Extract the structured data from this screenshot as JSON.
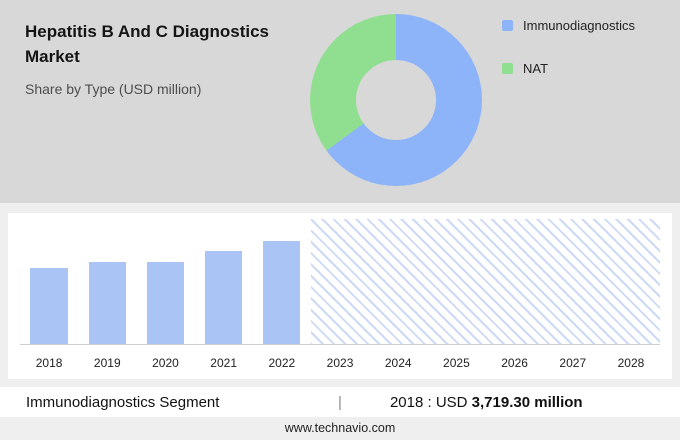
{
  "header": {
    "title": "Hepatitis B And C Diagnostics Market",
    "subtitle": "Share by Type (USD million)"
  },
  "chart_data": [
    {
      "type": "pie",
      "donut": true,
      "title": "Share by Type (USD million)",
      "labels": [
        "Immunodiagnostics",
        "NAT"
      ],
      "values": [
        65,
        35
      ],
      "colors": [
        "#8db4f8",
        "#90df90"
      ],
      "legend_position": "right"
    },
    {
      "type": "bar",
      "title": "Immunodiagnostics Segment (USD million)",
      "categories": [
        "2018",
        "2019",
        "2020",
        "2021",
        "2022",
        "2023",
        "2024",
        "2025",
        "2026",
        "2027",
        "2028"
      ],
      "values": [
        3719.3,
        4020,
        3990,
        4550,
        5030,
        null,
        null,
        null,
        null,
        null,
        null
      ],
      "ylim": [
        0,
        5800
      ],
      "bar_color": "#a9c4f5",
      "forecast_categories": [
        "2023",
        "2024",
        "2025",
        "2026",
        "2027",
        "2028"
      ]
    }
  ],
  "info_bar": {
    "segment_label": "Immunodiagnostics Segment",
    "separator": "|",
    "value_prefix": "2018 : USD",
    "value_bold": "3,719.30 million"
  },
  "footer": {
    "website": "www.technavio.com"
  }
}
